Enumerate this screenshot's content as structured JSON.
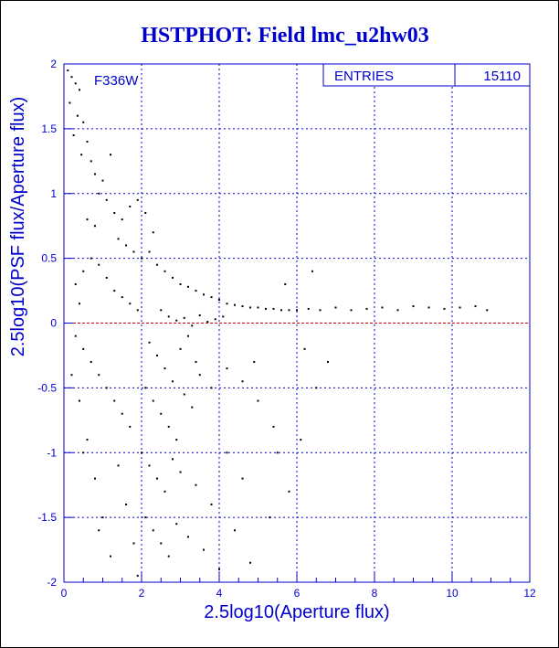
{
  "chart_data": {
    "type": "scatter",
    "title": "HSTPHOT: Field lmc_u2hw03",
    "xlabel": "2.5log10(Aperture flux)",
    "ylabel": "2.5log10(PSF flux/Aperture flux)",
    "filter_label": "F336W",
    "stats": {
      "label": "ENTRIES",
      "value": "15110"
    },
    "xlim": [
      0,
      12
    ],
    "ylim": [
      -2,
      2
    ],
    "x_ticks": [
      {
        "v": 0,
        "label": "0"
      },
      {
        "v": 2,
        "label": "2"
      },
      {
        "v": 4,
        "label": "4"
      },
      {
        "v": 6,
        "label": "6"
      },
      {
        "v": 8,
        "label": "8"
      },
      {
        "v": 10,
        "label": "10"
      },
      {
        "v": 12,
        "label": "12"
      }
    ],
    "y_ticks": [
      {
        "v": 2,
        "label": "2"
      },
      {
        "v": 1.5,
        "label": "1.5"
      },
      {
        "v": 1,
        "label": "1"
      },
      {
        "v": 0.5,
        "label": "0.5"
      },
      {
        "v": 0,
        "label": "0"
      },
      {
        "v": -0.5,
        "label": "-0.5"
      },
      {
        "v": -1,
        "label": "-1"
      },
      {
        "v": -1.5,
        "label": "-1.5"
      },
      {
        "v": -2,
        "label": "-2"
      }
    ],
    "grid": true,
    "reference_line_y": 0,
    "colors": {
      "title": "#0000cc",
      "axis": "#0000cc",
      "grid": "#0000cc",
      "reference_line": "#cc0000",
      "points": "#000000"
    },
    "series": [
      {
        "points": [
          [
            0.1,
            1.95
          ],
          [
            0.2,
            1.9
          ],
          [
            0.3,
            1.85
          ],
          [
            0.4,
            1.8
          ],
          [
            0.15,
            1.7
          ],
          [
            0.35,
            1.6
          ],
          [
            0.5,
            1.55
          ],
          [
            0.25,
            1.45
          ],
          [
            0.6,
            1.4
          ],
          [
            0.45,
            1.3
          ],
          [
            0.7,
            1.25
          ],
          [
            0.8,
            1.15
          ],
          [
            1.2,
            1.3
          ],
          [
            1.0,
            1.1
          ],
          [
            0.9,
            1.0
          ],
          [
            1.1,
            0.95
          ],
          [
            1.3,
            0.85
          ],
          [
            0.6,
            0.8
          ],
          [
            0.8,
            0.75
          ],
          [
            1.5,
            0.8
          ],
          [
            1.7,
            0.9
          ],
          [
            1.9,
            0.95
          ],
          [
            2.1,
            0.85
          ],
          [
            2.3,
            0.7
          ],
          [
            1.4,
            0.65
          ],
          [
            1.6,
            0.6
          ],
          [
            1.8,
            0.55
          ],
          [
            2.0,
            0.5
          ],
          [
            2.2,
            0.55
          ],
          [
            2.4,
            0.45
          ],
          [
            2.6,
            0.4
          ],
          [
            2.8,
            0.35
          ],
          [
            3.0,
            0.3
          ],
          [
            3.2,
            0.28
          ],
          [
            3.4,
            0.25
          ],
          [
            3.6,
            0.22
          ],
          [
            3.8,
            0.2
          ],
          [
            4.0,
            0.18
          ],
          [
            4.2,
            0.15
          ],
          [
            4.4,
            0.14
          ],
          [
            4.6,
            0.13
          ],
          [
            4.8,
            0.12
          ],
          [
            5.0,
            0.12
          ],
          [
            5.2,
            0.11
          ],
          [
            5.4,
            0.11
          ],
          [
            5.6,
            0.1
          ],
          [
            5.8,
            0.1
          ],
          [
            6.0,
            0.1
          ],
          [
            6.3,
            0.11
          ],
          [
            6.6,
            0.1
          ],
          [
            7.0,
            0.12
          ],
          [
            7.4,
            0.1
          ],
          [
            7.8,
            0.11
          ],
          [
            8.2,
            0.12
          ],
          [
            8.6,
            0.1
          ],
          [
            9.0,
            0.13
          ],
          [
            9.4,
            0.12
          ],
          [
            9.8,
            0.11
          ],
          [
            10.2,
            0.12
          ],
          [
            10.6,
            0.13
          ],
          [
            10.9,
            0.1
          ],
          [
            2.5,
            0.1
          ],
          [
            2.7,
            0.05
          ],
          [
            2.9,
            0.02
          ],
          [
            3.1,
            0.04
          ],
          [
            3.3,
            -0.02
          ],
          [
            3.5,
            0.06
          ],
          [
            3.7,
            0.01
          ],
          [
            3.9,
            0.03
          ],
          [
            4.1,
            0.05
          ],
          [
            2.2,
            -0.15
          ],
          [
            2.4,
            -0.25
          ],
          [
            2.6,
            -0.35
          ],
          [
            2.8,
            -0.45
          ],
          [
            3.0,
            -0.2
          ],
          [
            3.2,
            -0.1
          ],
          [
            3.4,
            -0.3
          ],
          [
            2.1,
            -0.5
          ],
          [
            2.3,
            -0.6
          ],
          [
            2.5,
            -0.7
          ],
          [
            2.7,
            -0.8
          ],
          [
            2.9,
            -0.9
          ],
          [
            3.1,
            -0.55
          ],
          [
            3.3,
            -0.65
          ],
          [
            3.5,
            -0.4
          ],
          [
            3.8,
            -0.5
          ],
          [
            4.2,
            -0.35
          ],
          [
            4.6,
            -0.45
          ],
          [
            5.0,
            -0.6
          ],
          [
            5.4,
            -0.8
          ],
          [
            2.0,
            -1.0
          ],
          [
            2.2,
            -1.1
          ],
          [
            2.4,
            -1.2
          ],
          [
            2.6,
            -1.3
          ],
          [
            2.8,
            -1.05
          ],
          [
            3.0,
            -1.15
          ],
          [
            3.4,
            -1.25
          ],
          [
            3.8,
            -1.4
          ],
          [
            4.2,
            -1.0
          ],
          [
            4.6,
            -1.2
          ],
          [
            2.1,
            -1.5
          ],
          [
            2.3,
            -1.6
          ],
          [
            2.5,
            -1.7
          ],
          [
            2.7,
            -1.8
          ],
          [
            2.9,
            -1.55
          ],
          [
            3.2,
            -1.65
          ],
          [
            3.6,
            -1.75
          ],
          [
            4.0,
            -1.9
          ],
          [
            4.4,
            -1.6
          ],
          [
            4.8,
            -1.85
          ],
          [
            0.3,
            -0.1
          ],
          [
            0.5,
            -0.2
          ],
          [
            0.7,
            -0.3
          ],
          [
            0.9,
            -0.4
          ],
          [
            1.1,
            -0.5
          ],
          [
            1.3,
            -0.6
          ],
          [
            1.5,
            -0.7
          ],
          [
            1.7,
            -0.8
          ],
          [
            0.4,
            -0.6
          ],
          [
            0.6,
            -0.9
          ],
          [
            0.8,
            -1.2
          ],
          [
            1.0,
            -1.5
          ],
          [
            1.2,
            -1.8
          ],
          [
            0.2,
            -0.4
          ],
          [
            0.5,
            -1.0
          ],
          [
            0.9,
            -1.6
          ],
          [
            1.4,
            -1.1
          ],
          [
            1.6,
            -1.4
          ],
          [
            1.8,
            -1.7
          ],
          [
            1.9,
            -1.95
          ],
          [
            0.3,
            0.3
          ],
          [
            0.5,
            0.4
          ],
          [
            0.7,
            0.5
          ],
          [
            0.9,
            0.45
          ],
          [
            1.1,
            0.35
          ],
          [
            1.3,
            0.25
          ],
          [
            1.5,
            0.2
          ],
          [
            1.7,
            0.15
          ],
          [
            1.9,
            0.1
          ],
          [
            0.4,
            0.15
          ],
          [
            6.2,
            -0.2
          ],
          [
            6.5,
            -0.5
          ],
          [
            6.8,
            -0.3
          ],
          [
            5.5,
            -1.0
          ],
          [
            5.8,
            -1.3
          ],
          [
            6.1,
            -0.9
          ],
          [
            5.3,
            -1.5
          ],
          [
            4.9,
            -0.3
          ],
          [
            5.7,
            0.3
          ],
          [
            6.4,
            0.4
          ]
        ]
      }
    ]
  }
}
